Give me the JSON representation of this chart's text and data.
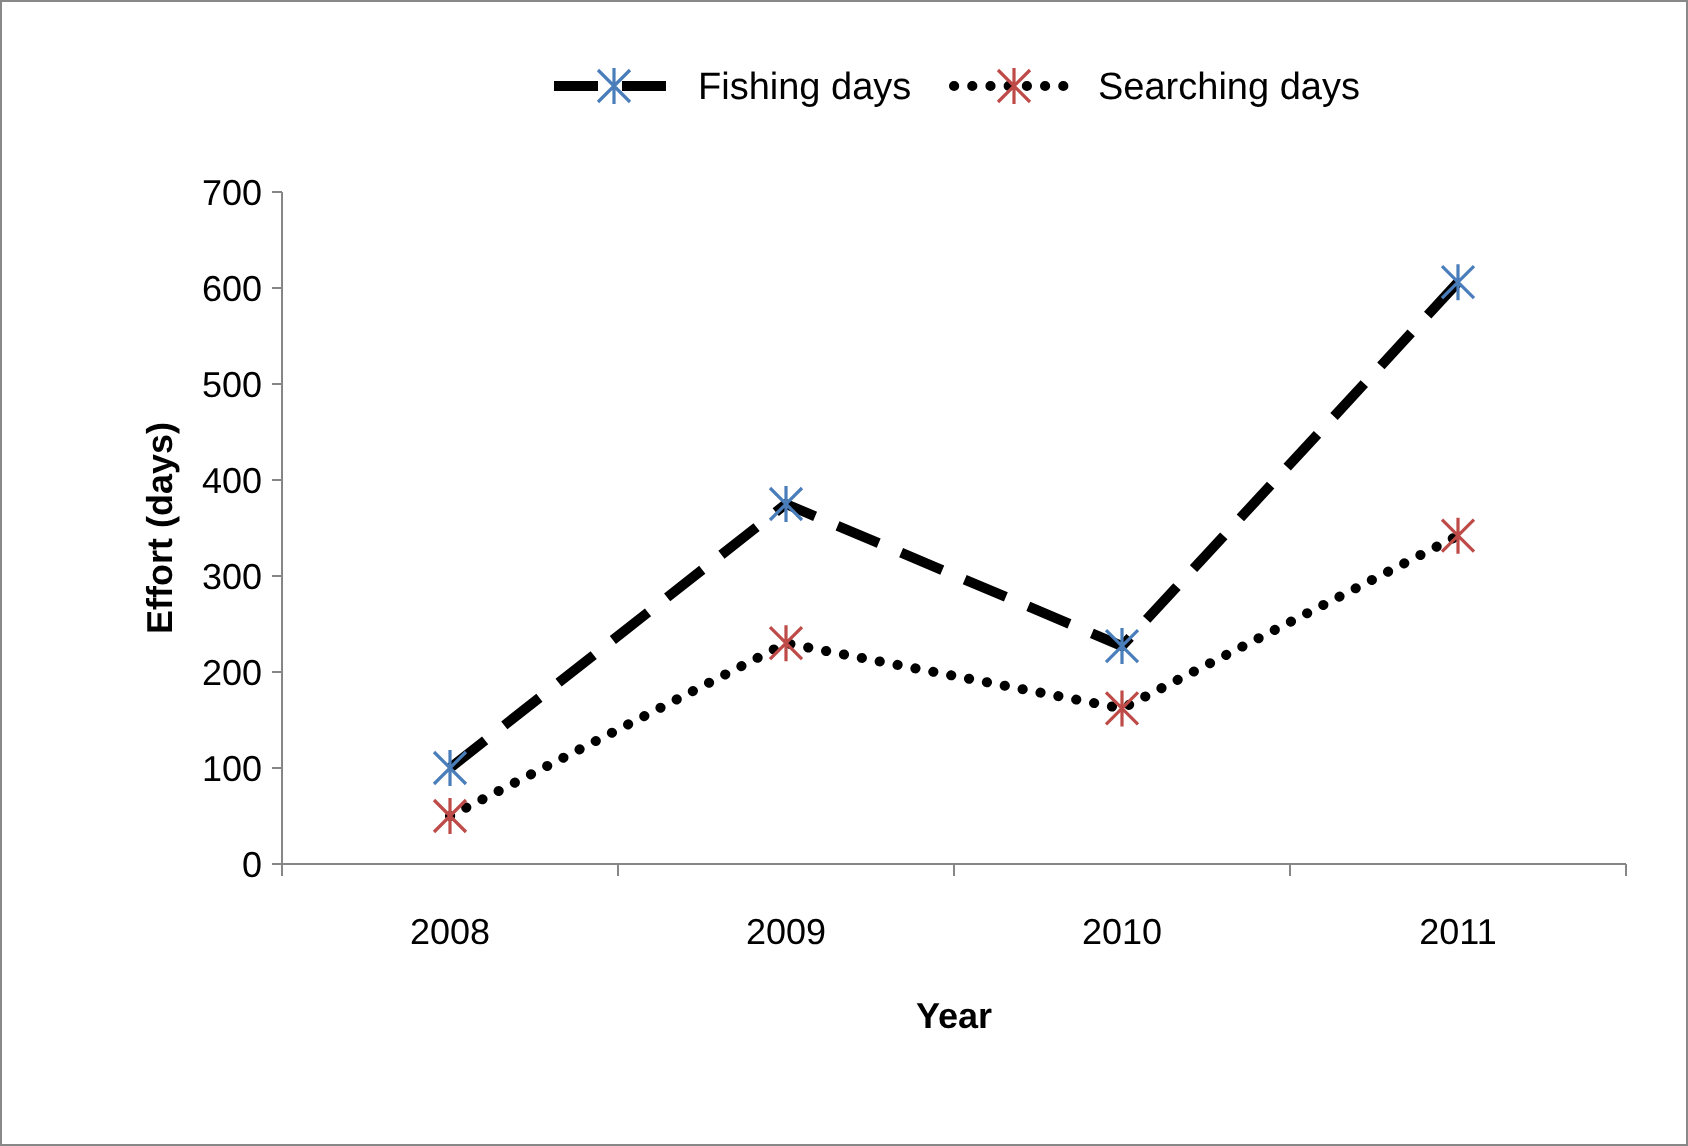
{
  "chart_data": {
    "type": "line",
    "xlabel": "Year",
    "ylabel": "Effort (days)",
    "categories": [
      "2008",
      "2009",
      "2010",
      "2011"
    ],
    "series": [
      {
        "name": "Fishing days",
        "color": "#4a7ebb",
        "values": [
          100,
          375,
          227,
          606
        ],
        "line_style": "dashed"
      },
      {
        "name": "Searching days",
        "color": "#be4b48",
        "values": [
          50,
          230,
          162,
          342
        ],
        "line_style": "dotted"
      }
    ],
    "ylim": [
      0,
      700
    ],
    "yticks": [
      0,
      100,
      200,
      300,
      400,
      500,
      600,
      700
    ],
    "grid": false,
    "legend": "top",
    "marker": "cross"
  }
}
